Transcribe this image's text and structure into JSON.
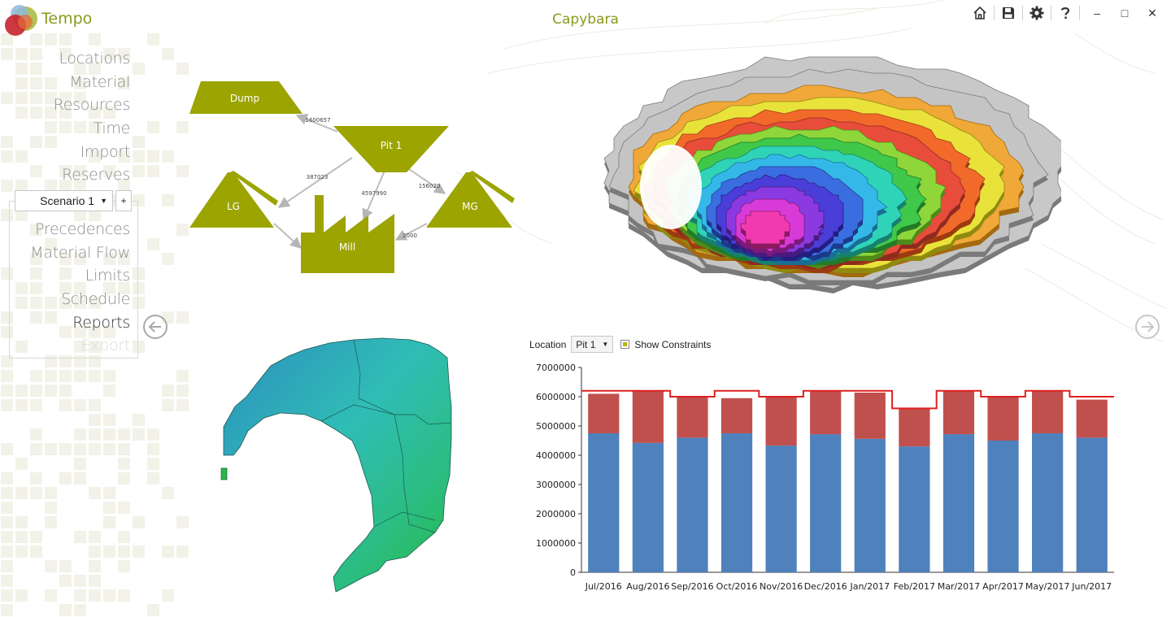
{
  "app": {
    "name": "Tempo",
    "project_title": "Capybara"
  },
  "toolbar": {
    "icons": [
      "home-icon",
      "save-icon",
      "gear-icon",
      "help-icon"
    ],
    "window": {
      "minimize": "–",
      "maximize": "□",
      "close": "✕"
    }
  },
  "nav": {
    "items": [
      "Locations",
      "Material",
      "Resources",
      "Time",
      "Import",
      "Reserves"
    ]
  },
  "scenario": {
    "selected": "Scenario 1",
    "add_label": "+",
    "items": [
      "Precedences",
      "Material Flow",
      "Limits",
      "Schedule",
      "Reports",
      "Export"
    ],
    "active": "Reports",
    "disabled": "Export"
  },
  "flow_diagram": {
    "nodes": [
      "Dump",
      "Pit 1",
      "LG",
      "Mill",
      "MG"
    ],
    "edges": [
      {
        "from": "Pit 1",
        "to": "Dump",
        "label": "1600657"
      },
      {
        "from": "Pit 1",
        "to": "LG",
        "label": "387023"
      },
      {
        "from": "Pit 1",
        "to": "Mill",
        "label": "4597990"
      },
      {
        "from": "Pit 1",
        "to": "MG",
        "label": "156020"
      },
      {
        "from": "MG",
        "to": "Mill",
        "label": "2000"
      }
    ],
    "color": "#9ca400"
  },
  "report": {
    "location_label": "Location",
    "location_value": "Pit 1",
    "show_constraints_label": "Show Constraints",
    "show_constraints": true
  },
  "chart_data": {
    "type": "bar",
    "stacked": true,
    "categories": [
      "Jul/2016",
      "Aug/2016",
      "Sep/2016",
      "Oct/2016",
      "Nov/2016",
      "Dec/2016",
      "Jan/2017",
      "Feb/2017",
      "Mar/2017",
      "Apr/2017",
      "May/2017",
      "Jun/2017"
    ],
    "series": [
      {
        "color": "#4f81bd",
        "values": [
          4750000,
          4420000,
          4600000,
          4750000,
          4330000,
          4720000,
          4560000,
          4300000,
          4720000,
          4500000,
          4750000,
          4600000
        ]
      },
      {
        "color": "#c0504d",
        "values": [
          1350000,
          1780000,
          1400000,
          1200000,
          1670000,
          1480000,
          1580000,
          1300000,
          1480000,
          1500000,
          1450000,
          1300000
        ]
      }
    ],
    "constraint": {
      "color": "#e02020",
      "values": [
        6200000,
        6200000,
        6000000,
        6200000,
        6000000,
        6200000,
        6200000,
        5600000,
        6200000,
        6000000,
        6200000,
        6000000
      ]
    },
    "ylim": [
      0,
      7000000
    ],
    "yticks": [
      "0",
      "1000000",
      "2000000",
      "3000000",
      "4000000",
      "5000000",
      "6000000",
      "7000000"
    ],
    "xlabel": "",
    "ylabel": "",
    "grid": false
  }
}
